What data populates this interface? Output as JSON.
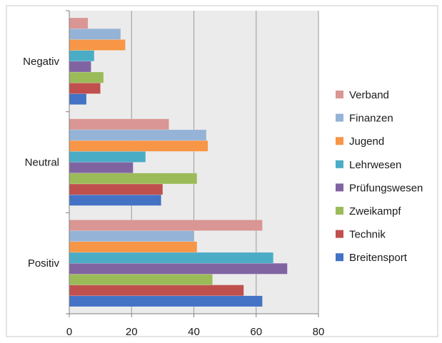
{
  "chart_data": {
    "type": "bar",
    "orientation": "horizontal",
    "categories": [
      "Positiv",
      "Neutral",
      "Negativ"
    ],
    "series": [
      {
        "name": "Breitensport",
        "color": "#4472c4",
        "values": [
          62,
          29.5,
          5.5
        ]
      },
      {
        "name": "Technik",
        "color": "#c0504d",
        "values": [
          56,
          30,
          10
        ]
      },
      {
        "name": "Zweikampf",
        "color": "#9bbb59",
        "values": [
          46,
          41,
          11
        ]
      },
      {
        "name": "Prüfungswesen",
        "color": "#8064a2",
        "values": [
          70,
          20.5,
          7
        ]
      },
      {
        "name": "Lehrwesen",
        "color": "#4bacc6",
        "values": [
          65.5,
          24.5,
          8
        ]
      },
      {
        "name": "Jugend",
        "color": "#f79646",
        "values": [
          41,
          44.5,
          18
        ]
      },
      {
        "name": "Finanzen",
        "color": "#95b3d7",
        "values": [
          40,
          44,
          16.5
        ]
      },
      {
        "name": "Verband",
        "color": "#d99694",
        "values": [
          62,
          32,
          6
        ]
      }
    ],
    "xlim": [
      0,
      80
    ],
    "xticks": [
      "0",
      "20",
      "40",
      "60",
      "80"
    ],
    "xlabel": "",
    "ylabel": "",
    "grid": "vertical",
    "legend_position": "right",
    "legend_order": [
      "Verband",
      "Finanzen",
      "Jugend",
      "Lehrwesen",
      "Prüfungswesen",
      "Zweikampf",
      "Technik",
      "Breitensport"
    ],
    "plot_background": "#ebebeb"
  }
}
